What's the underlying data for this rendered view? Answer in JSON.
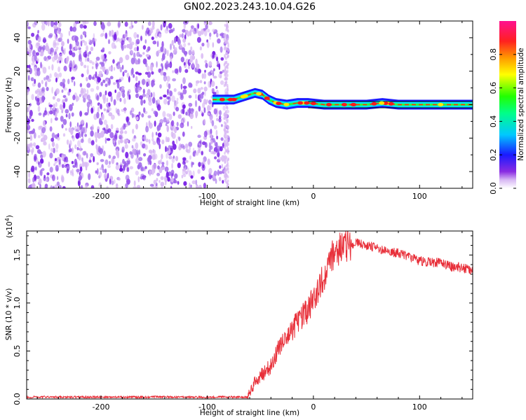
{
  "title": "GN02.2023.243.10.04.G26",
  "colors": {
    "snr_line": "#e8303a",
    "noise_light": "#d8b8f4",
    "noise_mid": "#a068ec",
    "noise_dark": "#7a22e6"
  },
  "chart_data": [
    {
      "type": "heatmap",
      "name": "spectrogram",
      "xlabel": "Height of straight line (km)",
      "ylabel": "Frequency (Hz)",
      "xlim": [
        -270,
        150
      ],
      "ylim": [
        -50,
        50
      ],
      "xticks": [
        -200,
        -100,
        0,
        100
      ],
      "xtick_labels": [
        "-200",
        "-100",
        "0",
        "100"
      ],
      "yticks": [
        -40,
        -20,
        0,
        20,
        40
      ],
      "ytick_labels": [
        "-40",
        "-20",
        "0",
        "20",
        "40"
      ],
      "noise_region_x": [
        -270,
        -80
      ],
      "signal_region_x": [
        -95,
        150
      ],
      "signal_track": [
        {
          "x": -95,
          "f": 3
        },
        {
          "x": -85,
          "f": 3
        },
        {
          "x": -75,
          "f": 3
        },
        {
          "x": -65,
          "f": 5
        },
        {
          "x": -55,
          "f": 7
        },
        {
          "x": -48,
          "f": 6
        },
        {
          "x": -42,
          "f": 3
        },
        {
          "x": -35,
          "f": 1
        },
        {
          "x": -25,
          "f": 0
        },
        {
          "x": -15,
          "f": 1
        },
        {
          "x": -5,
          "f": 1
        },
        {
          "x": 10,
          "f": 0
        },
        {
          "x": 30,
          "f": 0
        },
        {
          "x": 50,
          "f": 0
        },
        {
          "x": 65,
          "f": 1
        },
        {
          "x": 80,
          "f": 0
        },
        {
          "x": 100,
          "f": 0
        },
        {
          "x": 125,
          "f": 0
        },
        {
          "x": 150,
          "f": 0
        }
      ],
      "colorbar": {
        "label": "Normalized spectral amplitude",
        "range": [
          0.0,
          1.0
        ],
        "ticks": [
          0.0,
          0.2,
          0.4,
          0.6,
          0.8
        ],
        "tick_labels": [
          "0.0",
          "0.2",
          "0.4",
          "0.6",
          "0.8"
        ],
        "colormap": "rainbow"
      }
    },
    {
      "type": "line",
      "name": "snr",
      "xlabel": "Height of straight line (km)",
      "ylabel": "SNR (10 * v/v)",
      "exponent_label": "(x10",
      "exponent_sup": "4",
      "exponent_close": ")",
      "xlim": [
        -270,
        150
      ],
      "ylim": [
        0,
        1.75
      ],
      "xticks": [
        -200,
        -100,
        0,
        100
      ],
      "xtick_labels": [
        "-200",
        "-100",
        "0",
        "100"
      ],
      "yticks": [
        0.0,
        0.5,
        1.0,
        1.5
      ],
      "ytick_labels": [
        "0.0",
        "0.5",
        "1.0",
        "1.5"
      ],
      "series": [
        {
          "x": [
            -270,
            -150,
            -62,
            -55,
            -48,
            -40,
            -33,
            -25,
            -18,
            -10,
            -3,
            3,
            10,
            17,
            25,
            32,
            40,
            50,
            60,
            70,
            80,
            90,
            100,
            110,
            120,
            130,
            140,
            150
          ],
          "y": [
            0.02,
            0.02,
            0.02,
            0.18,
            0.26,
            0.34,
            0.52,
            0.62,
            0.75,
            0.86,
            0.97,
            1.05,
            1.28,
            1.48,
            1.57,
            1.6,
            1.63,
            1.6,
            1.57,
            1.53,
            1.52,
            1.48,
            1.44,
            1.42,
            1.42,
            1.38,
            1.37,
            1.34
          ]
        }
      ]
    }
  ]
}
